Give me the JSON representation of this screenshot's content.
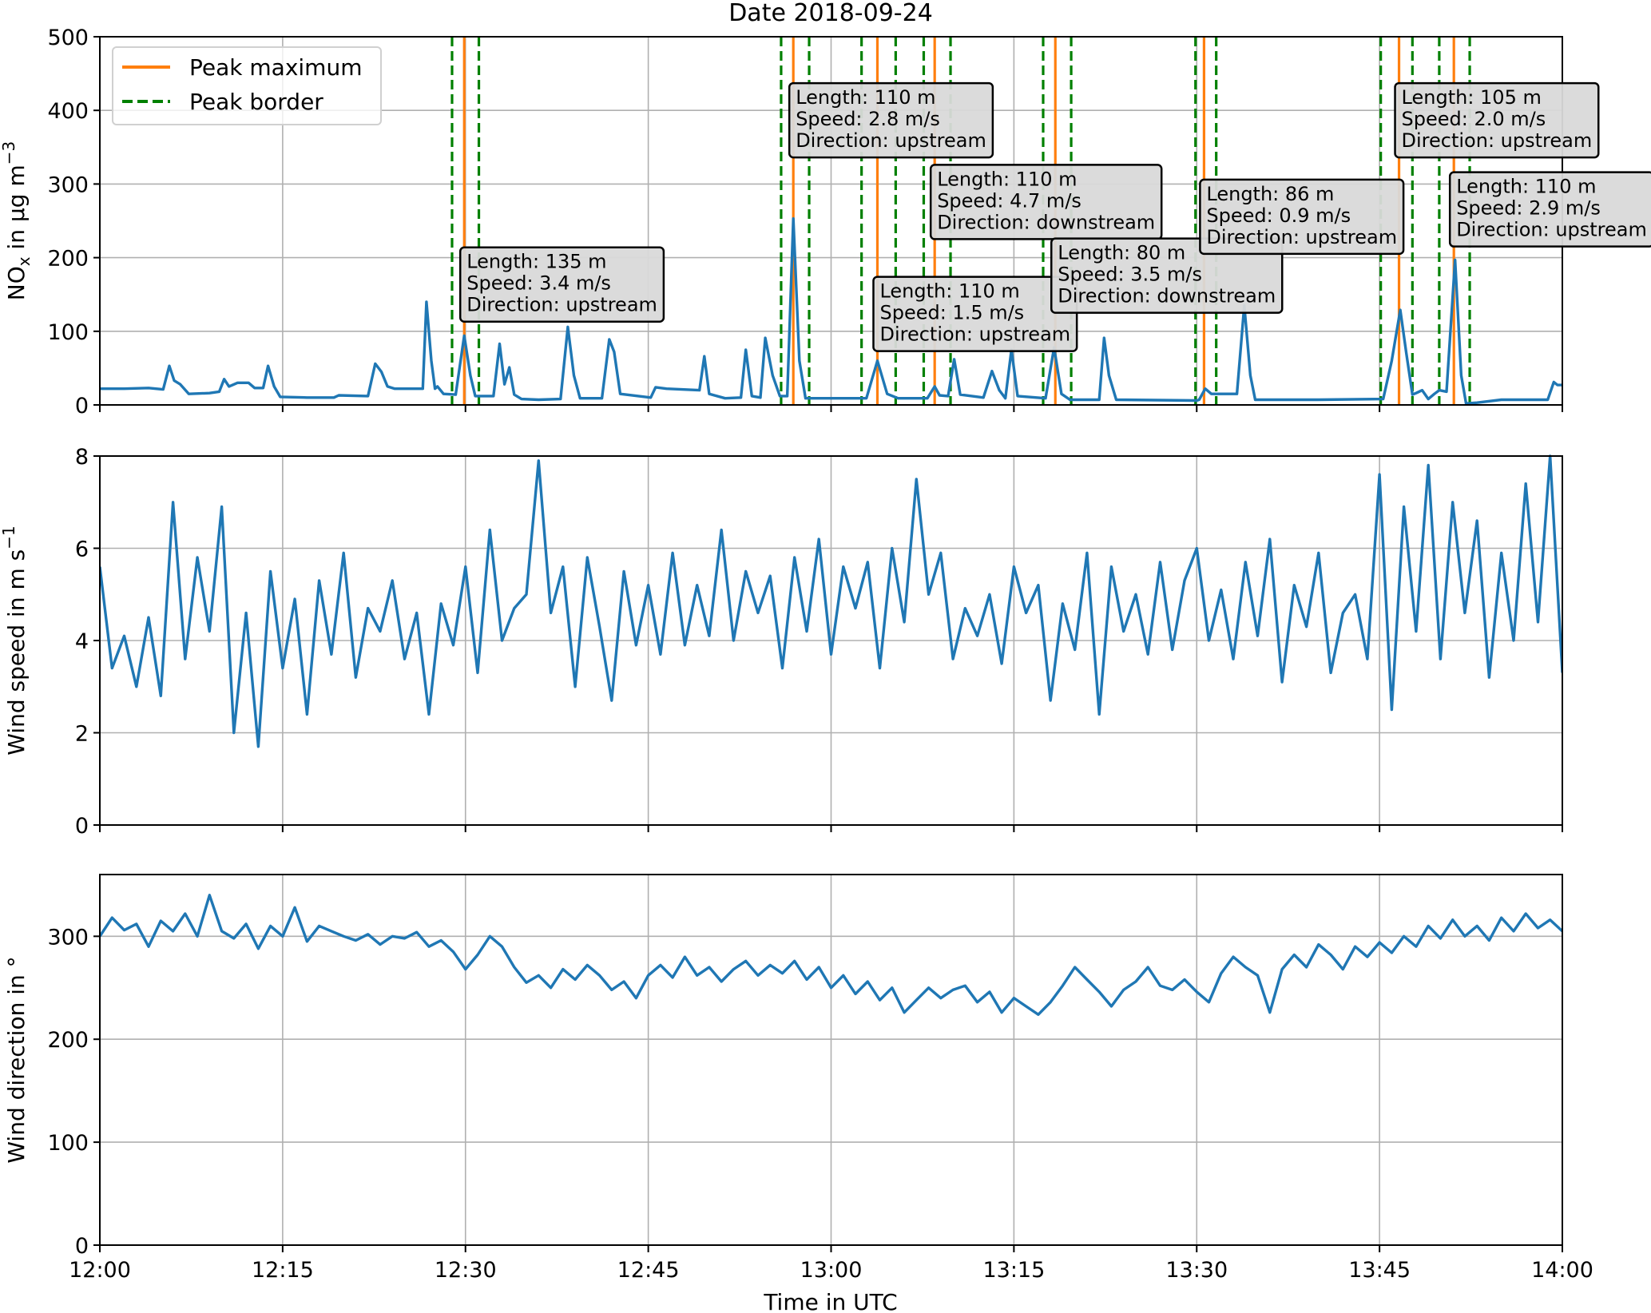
{
  "chart_data": {
    "type": "line",
    "title": "Date 2018-09-24",
    "xlabel": "Time in UTC",
    "xlim_minutes": [
      0,
      120
    ],
    "x_ticks": [
      {
        "minute": 0,
        "label": "12:00"
      },
      {
        "minute": 15,
        "label": "12:15"
      },
      {
        "minute": 30,
        "label": "12:30"
      },
      {
        "minute": 45,
        "label": "12:45"
      },
      {
        "minute": 60,
        "label": "13:00"
      },
      {
        "minute": 75,
        "label": "13:15"
      },
      {
        "minute": 90,
        "label": "13:30"
      },
      {
        "minute": 105,
        "label": "13:45"
      },
      {
        "minute": 120,
        "label": "14:00"
      }
    ],
    "grid": true,
    "colors": {
      "series": "#1f77b4",
      "peak_max": "#ff7f0e",
      "peak_border": "#008000",
      "annotation_bg": "#d9d9d9"
    },
    "legend": {
      "placement": "top-left",
      "entries": [
        {
          "label": "Peak maximum",
          "style": "solid",
          "color": "#ff7f0e"
        },
        {
          "label": "Peak border",
          "style": "dashed",
          "color": "#008000"
        }
      ]
    },
    "panels": [
      {
        "ylabel_main": "NO",
        "ylabel_sub": "x",
        "ylabel_rest": " in µg m",
        "ylabel_sup": "−3",
        "ylim": [
          0,
          500
        ],
        "yticks": [
          0,
          100,
          200,
          300,
          400,
          500
        ],
        "series": [
          [
            0,
            22
          ],
          [
            2,
            22
          ],
          [
            4,
            23
          ],
          [
            5.2,
            21
          ],
          [
            5.7,
            53
          ],
          [
            6.1,
            33
          ],
          [
            6.6,
            28
          ],
          [
            7.3,
            15
          ],
          [
            9,
            16
          ],
          [
            9.8,
            18
          ],
          [
            10.2,
            35
          ],
          [
            10.6,
            25
          ],
          [
            11.3,
            30
          ],
          [
            12.2,
            30
          ],
          [
            12.7,
            23
          ],
          [
            13.4,
            23
          ],
          [
            13.8,
            53
          ],
          [
            14.3,
            25
          ],
          [
            14.8,
            11
          ],
          [
            17,
            10
          ],
          [
            19.2,
            10
          ],
          [
            19.6,
            13
          ],
          [
            22,
            12
          ],
          [
            22.6,
            56
          ],
          [
            23.1,
            45
          ],
          [
            23.6,
            25
          ],
          [
            24.2,
            22
          ],
          [
            26.2,
            22
          ],
          [
            26.5,
            22
          ],
          [
            26.8,
            140
          ],
          [
            27.2,
            60
          ],
          [
            27.5,
            22
          ],
          [
            27.7,
            25
          ],
          [
            28.2,
            15
          ],
          [
            29.2,
            14
          ],
          [
            29.9,
            94
          ],
          [
            30.4,
            40
          ],
          [
            30.8,
            12
          ],
          [
            32.3,
            12
          ],
          [
            32.8,
            83
          ],
          [
            33.2,
            28
          ],
          [
            33.6,
            51
          ],
          [
            34,
            14
          ],
          [
            34.6,
            8
          ],
          [
            36,
            7
          ],
          [
            37.8,
            8
          ],
          [
            38.4,
            106
          ],
          [
            38.9,
            40
          ],
          [
            39.4,
            9
          ],
          [
            41.2,
            9
          ],
          [
            41.8,
            89
          ],
          [
            42.2,
            72
          ],
          [
            42.7,
            15
          ],
          [
            45.2,
            10
          ],
          [
            45.6,
            24
          ],
          [
            46.5,
            22
          ],
          [
            49.2,
            20
          ],
          [
            49.6,
            66
          ],
          [
            50,
            15
          ],
          [
            51.3,
            9
          ],
          [
            52.6,
            10
          ],
          [
            53,
            75
          ],
          [
            53.5,
            12
          ],
          [
            54.2,
            10
          ],
          [
            54.6,
            91
          ],
          [
            55.2,
            40
          ],
          [
            55.8,
            12
          ],
          [
            56.4,
            12
          ],
          [
            56.9,
            253
          ],
          [
            57.4,
            60
          ],
          [
            57.9,
            9
          ],
          [
            60,
            9
          ],
          [
            62.9,
            9
          ],
          [
            63.8,
            60
          ],
          [
            64.6,
            15
          ],
          [
            65.5,
            9
          ],
          [
            67.9,
            9
          ],
          [
            68.5,
            25
          ],
          [
            68.9,
            13
          ],
          [
            69.6,
            12
          ],
          [
            70.1,
            62
          ],
          [
            70.6,
            14
          ],
          [
            72.5,
            10
          ],
          [
            73.2,
            46
          ],
          [
            73.8,
            20
          ],
          [
            74.3,
            9
          ],
          [
            74.8,
            75
          ],
          [
            75.3,
            12
          ],
          [
            77.6,
            9
          ],
          [
            78.3,
            78
          ],
          [
            78.9,
            15
          ],
          [
            79.6,
            7
          ],
          [
            82,
            7
          ],
          [
            82.4,
            91
          ],
          [
            82.8,
            40
          ],
          [
            83.4,
            7
          ],
          [
            90,
            6
          ],
          [
            90.2,
            7
          ],
          [
            90.7,
            22
          ],
          [
            91.2,
            15
          ],
          [
            93.3,
            15
          ],
          [
            93.9,
            135
          ],
          [
            94.4,
            40
          ],
          [
            94.8,
            7
          ],
          [
            100,
            7
          ],
          [
            105.3,
            8
          ],
          [
            106,
            60
          ],
          [
            106.7,
            129
          ],
          [
            107.2,
            70
          ],
          [
            107.7,
            14
          ],
          [
            108,
            16
          ],
          [
            108.5,
            20
          ],
          [
            109,
            8
          ],
          [
            109.5,
            15
          ],
          [
            109.9,
            20
          ],
          [
            110.5,
            18
          ],
          [
            111.2,
            197
          ],
          [
            111.7,
            40
          ],
          [
            112.1,
            2
          ],
          [
            113,
            3
          ],
          [
            115,
            7
          ],
          [
            118.8,
            7
          ],
          [
            119.3,
            31
          ],
          [
            119.6,
            27
          ],
          [
            120,
            27
          ]
        ]
      },
      {
        "ylabel_main": "Wind speed in m s",
        "ylabel_sup": "−1",
        "ylim": [
          0,
          8
        ],
        "yticks": [
          0,
          2,
          4,
          6,
          8
        ],
        "series": [
          5.6,
          3.4,
          4.1,
          3.0,
          4.5,
          2.8,
          7.0,
          3.6,
          5.8,
          4.2,
          6.9,
          2.0,
          4.6,
          1.7,
          5.5,
          3.4,
          4.9,
          2.4,
          5.3,
          3.7,
          5.9,
          3.2,
          4.7,
          4.2,
          5.3,
          3.6,
          4.6,
          2.4,
          4.8,
          3.9,
          5.6,
          3.3,
          6.4,
          4.0,
          4.7,
          5.0,
          7.9,
          4.6,
          5.6,
          3.0,
          5.8,
          4.3,
          2.7,
          5.5,
          3.9,
          5.2,
          3.7,
          5.9,
          3.9,
          5.2,
          4.1,
          6.4,
          4.0,
          5.5,
          4.6,
          5.4,
          3.4,
          5.8,
          4.2,
          6.2,
          3.7,
          5.6,
          4.7,
          5.7,
          3.4,
          6.0,
          4.4,
          7.5,
          5.0,
          5.9,
          3.6,
          4.7,
          4.1,
          5.0,
          3.5,
          5.6,
          4.6,
          5.2,
          2.7,
          4.8,
          3.8,
          5.9,
          2.4,
          5.6,
          4.2,
          5.0,
          3.7,
          5.7,
          3.8,
          5.3,
          6.0,
          4.0,
          5.1,
          3.6,
          5.7,
          4.1,
          6.2,
          3.1,
          5.2,
          4.3,
          5.9,
          3.3,
          4.6,
          5.0,
          3.6,
          7.6,
          2.5,
          6.9,
          4.2,
          7.8,
          3.6,
          7.0,
          4.6,
          6.6,
          3.2,
          5.9,
          4.0,
          7.4,
          4.4,
          8.0,
          3.3
        ]
      },
      {
        "ylabel_main": "Wind direction in °",
        "ylim": [
          0,
          360
        ],
        "yticks": [
          0,
          100,
          200,
          300
        ],
        "series": [
          300,
          318,
          306,
          312,
          290,
          315,
          305,
          322,
          300,
          340,
          305,
          298,
          312,
          288,
          310,
          300,
          328,
          295,
          310,
          305,
          300,
          296,
          302,
          292,
          300,
          298,
          304,
          290,
          296,
          285,
          268,
          282,
          300,
          290,
          270,
          255,
          262,
          250,
          268,
          258,
          272,
          262,
          248,
          256,
          240,
          262,
          272,
          260,
          280,
          262,
          270,
          256,
          268,
          276,
          262,
          272,
          264,
          276,
          258,
          270,
          250,
          262,
          244,
          256,
          238,
          250,
          226,
          238,
          250,
          240,
          248,
          252,
          236,
          246,
          226,
          240,
          232,
          224,
          236,
          252,
          270,
          258,
          246,
          232,
          248,
          256,
          270,
          252,
          248,
          258,
          246,
          236,
          264,
          280,
          270,
          262,
          226,
          268,
          282,
          270,
          292,
          282,
          268,
          290,
          280,
          294,
          284,
          300,
          290,
          310,
          298,
          316,
          300,
          310,
          296,
          318,
          305,
          322,
          308,
          316,
          305
        ]
      }
    ],
    "peaks": [
      {
        "max": 29.9,
        "borders": [
          28.9,
          31.1
        ],
        "label_y": 214,
        "lines": [
          "Length: 135 m",
          "Speed: 3.4 m/s",
          "Direction: upstream"
        ]
      },
      {
        "max": 56.9,
        "borders": [
          55.9,
          58.2
        ],
        "label_y": 437,
        "lines": [
          "Length: 110 m",
          "Speed: 2.8 m/s",
          "Direction: upstream"
        ]
      },
      {
        "max": 63.8,
        "borders": [
          62.5,
          65.3
        ],
        "label_y": 174,
        "lines": [
          "Length: 110 m",
          "Speed: 1.5 m/s",
          "Direction: upstream"
        ]
      },
      {
        "max": 68.5,
        "borders": [
          67.6,
          69.8
        ],
        "label_y": 326,
        "lines": [
          "Length: 110 m",
          "Speed: 4.7 m/s",
          "Direction: downstream"
        ]
      },
      {
        "max": 78.4,
        "borders": [
          77.4,
          79.7
        ],
        "label_y": 226,
        "lines": [
          "Length: 80 m",
          "Speed: 3.5 m/s",
          "Direction: downstream"
        ]
      },
      {
        "max": 90.6,
        "borders": [
          89.9,
          91.6
        ],
        "label_y": 306,
        "lines": [
          "Length: 86 m",
          "Speed: 0.9 m/s",
          "Direction: upstream"
        ]
      },
      {
        "max": 106.6,
        "borders": [
          105.1,
          107.7
        ],
        "label_y": 437,
        "lines": [
          "Length: 105 m",
          "Speed: 2.0 m/s",
          "Direction: upstream"
        ]
      },
      {
        "max": 111.1,
        "borders": [
          109.9,
          112.4
        ],
        "label_y": 316,
        "lines": [
          "Length: 110 m",
          "Speed: 2.9 m/s",
          "Direction: upstream"
        ]
      }
    ]
  }
}
